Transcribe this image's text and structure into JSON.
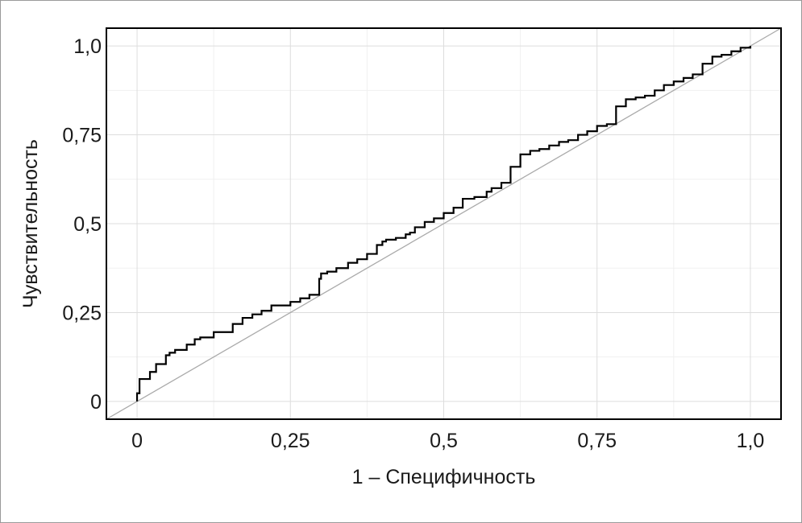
{
  "chart_data": {
    "type": "line",
    "xlabel": "1 – Специфичность",
    "ylabel": "Чувствительность",
    "xlim": [
      -0.05,
      1.05
    ],
    "ylim": [
      -0.05,
      1.05
    ],
    "x_ticks": [
      {
        "value": 0,
        "label": "0"
      },
      {
        "value": 0.25,
        "label": "0,25"
      },
      {
        "value": 0.5,
        "label": "0,5"
      },
      {
        "value": 0.75,
        "label": "0,75"
      },
      {
        "value": 1.0,
        "label": "1,0"
      }
    ],
    "y_ticks": [
      {
        "value": 0,
        "label": "0"
      },
      {
        "value": 0.25,
        "label": "0,25"
      },
      {
        "value": 0.5,
        "label": "0,5"
      },
      {
        "value": 0.75,
        "label": "0,75"
      },
      {
        "value": 1.0,
        "label": "1,0"
      }
    ],
    "grid": true,
    "series": [
      {
        "color": "#000000",
        "step": true,
        "x": [
          0.0,
          0.0,
          0.004,
          0.021,
          0.031,
          0.047,
          0.053,
          0.062,
          0.081,
          0.094,
          0.103,
          0.125,
          0.156,
          0.172,
          0.188,
          0.203,
          0.219,
          0.25,
          0.266,
          0.281,
          0.297,
          0.3,
          0.31,
          0.325,
          0.344,
          0.359,
          0.375,
          0.391,
          0.4,
          0.406,
          0.422,
          0.438,
          0.445,
          0.453,
          0.469,
          0.484,
          0.5,
          0.516,
          0.531,
          0.55,
          0.57,
          0.578,
          0.594,
          0.609,
          0.625,
          0.641,
          0.656,
          0.672,
          0.688,
          0.703,
          0.719,
          0.734,
          0.75,
          0.766,
          0.781,
          0.797,
          0.813,
          0.828,
          0.844,
          0.859,
          0.875,
          0.891,
          0.906,
          0.922,
          0.938,
          0.953,
          0.969,
          0.984,
          1.0
        ],
        "y": [
          0.0,
          0.023,
          0.063,
          0.083,
          0.105,
          0.13,
          0.137,
          0.145,
          0.16,
          0.175,
          0.18,
          0.195,
          0.218,
          0.235,
          0.245,
          0.255,
          0.27,
          0.28,
          0.29,
          0.3,
          0.345,
          0.36,
          0.365,
          0.375,
          0.39,
          0.4,
          0.415,
          0.44,
          0.45,
          0.455,
          0.46,
          0.47,
          0.475,
          0.49,
          0.505,
          0.515,
          0.53,
          0.545,
          0.57,
          0.575,
          0.59,
          0.6,
          0.615,
          0.66,
          0.695,
          0.705,
          0.71,
          0.72,
          0.73,
          0.735,
          0.75,
          0.76,
          0.775,
          0.78,
          0.83,
          0.85,
          0.855,
          0.86,
          0.875,
          0.89,
          0.9,
          0.91,
          0.92,
          0.95,
          0.97,
          0.975,
          0.985,
          0.995,
          1.0
        ]
      },
      {
        "color": "#aaaaaa",
        "step": false,
        "x": [
          -0.05,
          1.05
        ],
        "y": [
          -0.05,
          1.05
        ]
      }
    ]
  }
}
